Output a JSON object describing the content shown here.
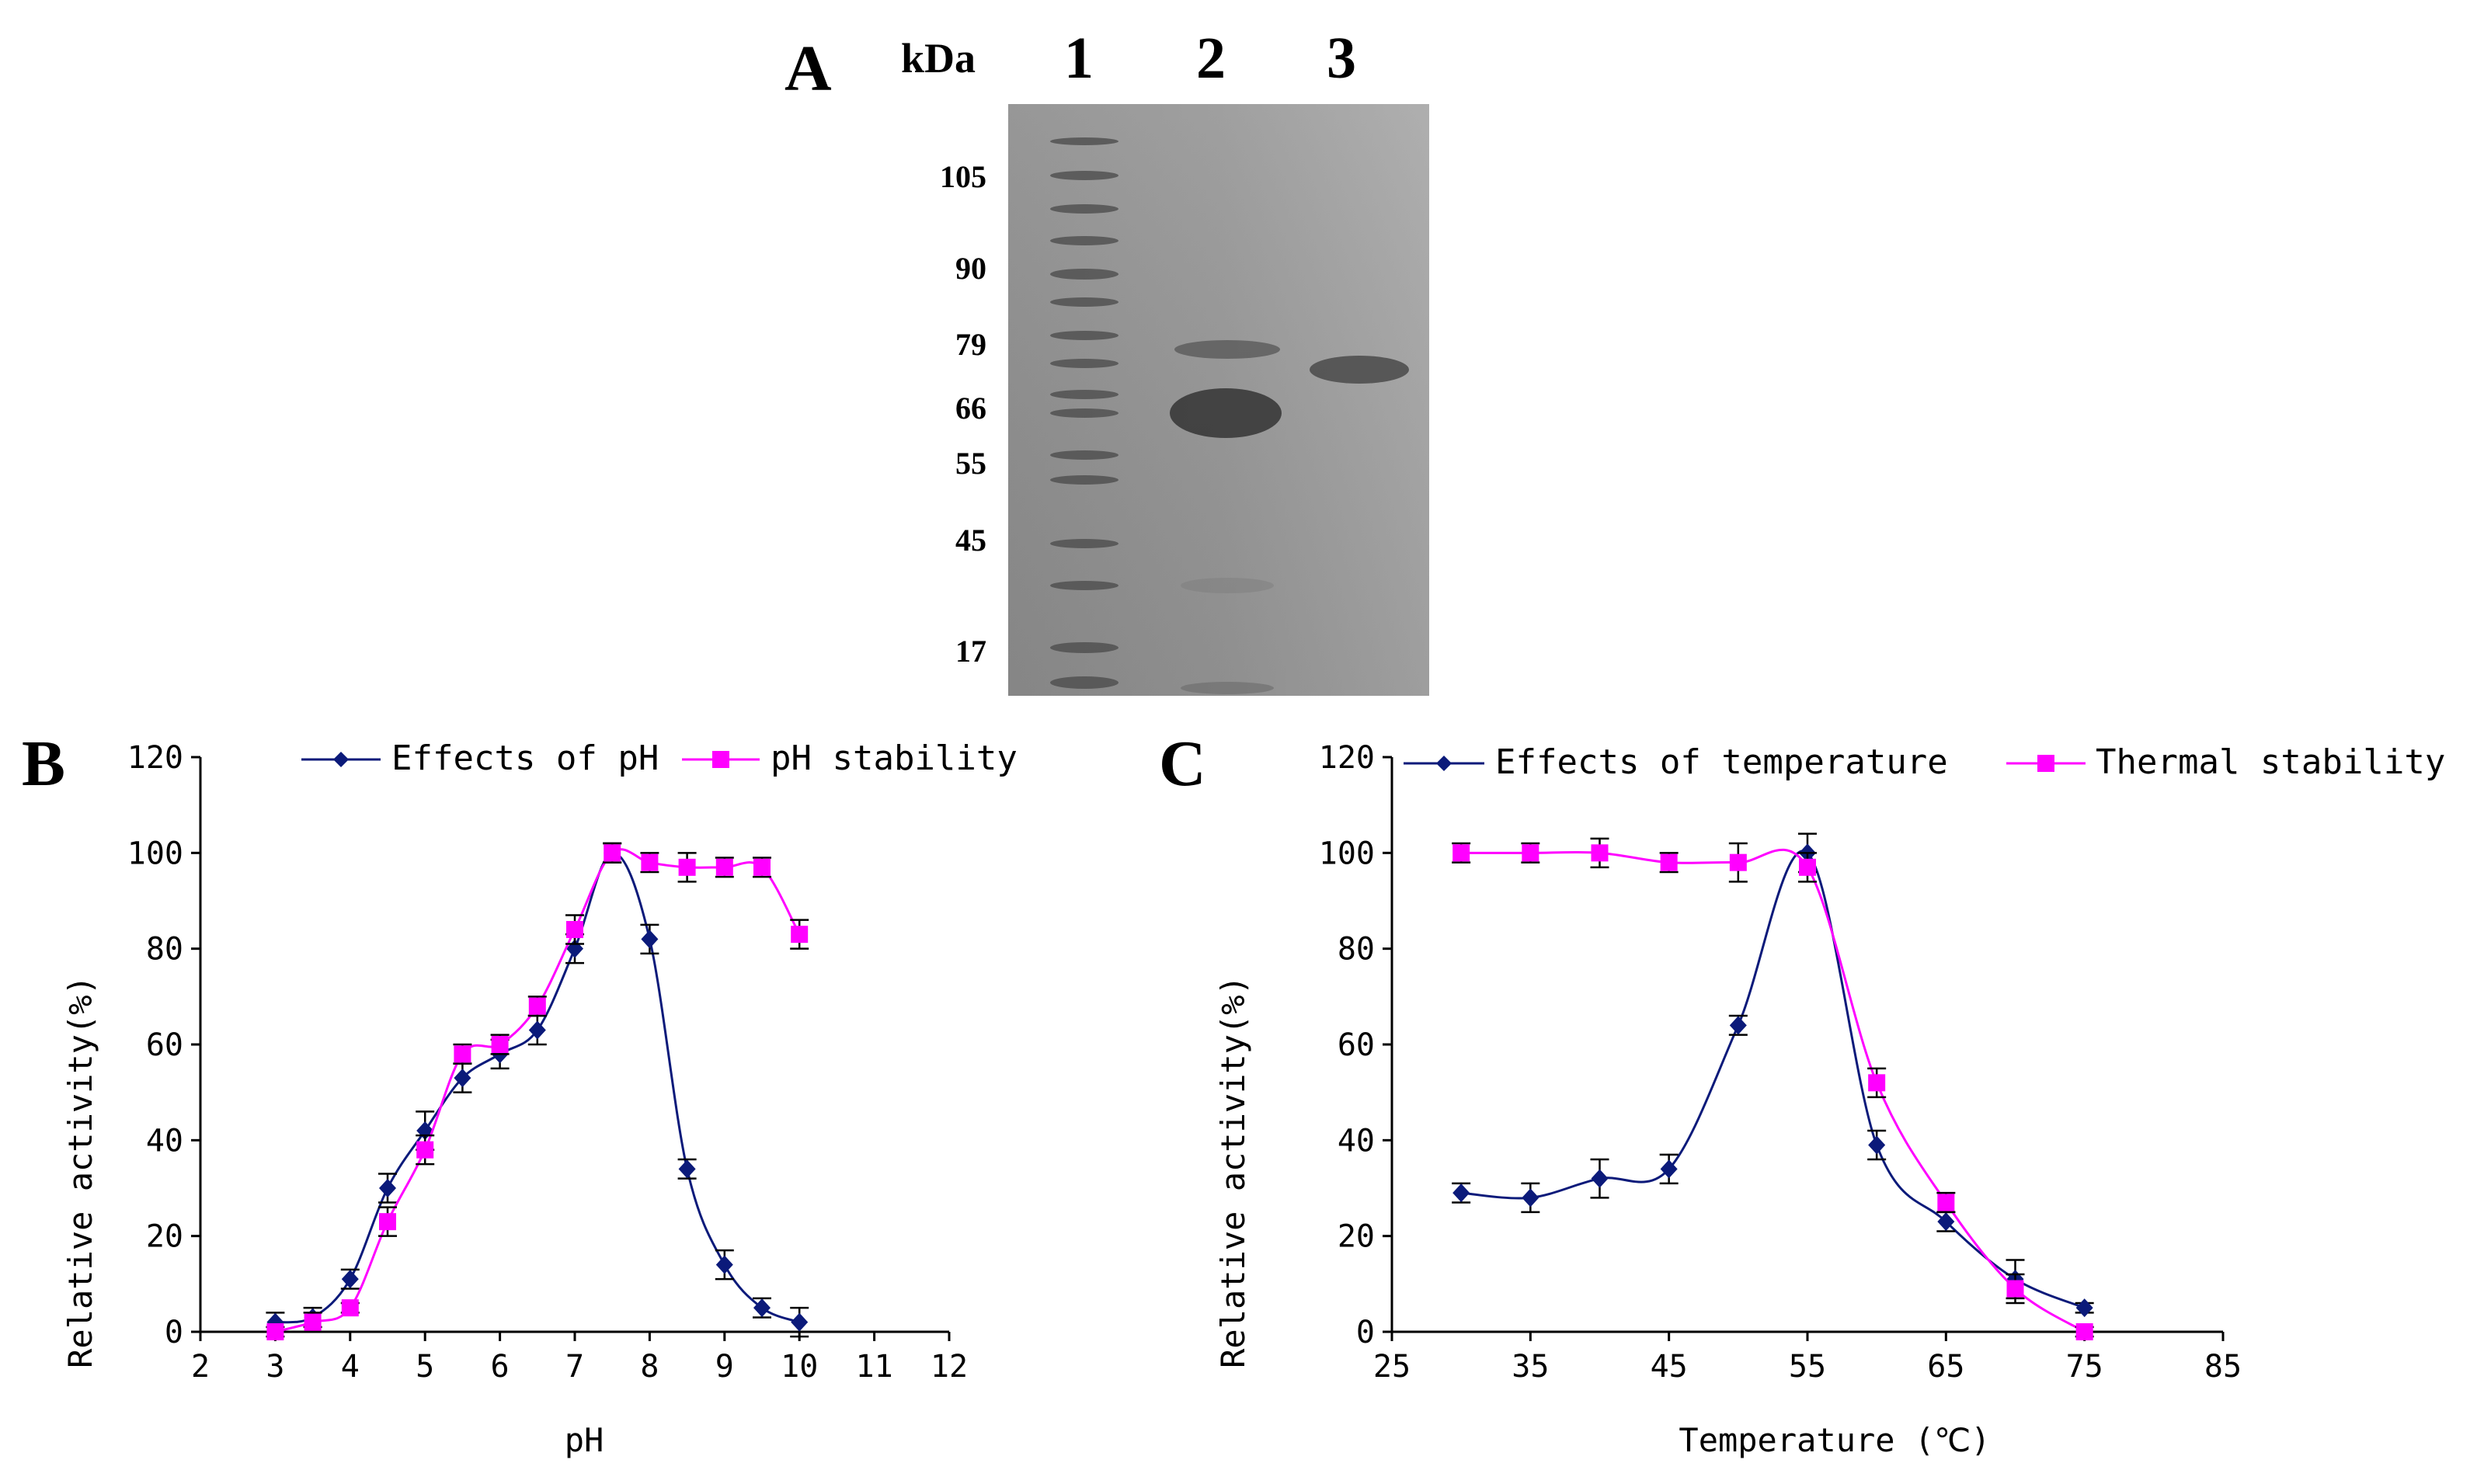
{
  "panel_labels": {
    "a": "A",
    "b": "B",
    "c": "C"
  },
  "gel": {
    "unit_label": "kDa",
    "lanes": [
      "1",
      "2",
      "3"
    ],
    "markers": [
      "105",
      "90",
      "79",
      "66",
      "55",
      "45",
      "17"
    ]
  },
  "colors": {
    "series1": "#0b1a7a",
    "series2": "#ff00ff",
    "axis": "#000000"
  },
  "chart_data": [
    {
      "type": "line",
      "title": "",
      "xlabel": "pH",
      "ylabel": "Relative activity(%)",
      "xlim": [
        2,
        12
      ],
      "ylim": [
        0,
        120
      ],
      "xticks": [
        "2",
        "3",
        "4",
        "5",
        "6",
        "7",
        "8",
        "9",
        "10",
        "11",
        "12"
      ],
      "yticks": [
        "0",
        "20",
        "40",
        "60",
        "80",
        "100",
        "120"
      ],
      "legend_position": "top",
      "series": [
        {
          "name": "Effects of pH",
          "marker": "diamond",
          "x": [
            3,
            3.5,
            4,
            4.5,
            5,
            5.5,
            6,
            6.5,
            7,
            7.5,
            8,
            8.5,
            9,
            9.5,
            10
          ],
          "values": [
            2,
            3,
            11,
            30,
            42,
            53,
            58,
            63,
            80,
            100,
            82,
            34,
            14,
            5,
            2
          ],
          "errors": [
            2,
            2,
            2,
            3,
            4,
            3,
            3,
            3,
            3,
            2,
            3,
            2,
            3,
            2,
            3
          ]
        },
        {
          "name": "pH stability",
          "marker": "square",
          "x": [
            3,
            3.5,
            4,
            4.5,
            5,
            5.5,
            6,
            6.5,
            7,
            7.5,
            8,
            8.5,
            9,
            9.5,
            10
          ],
          "values": [
            0,
            2,
            5,
            23,
            38,
            58,
            60,
            68,
            84,
            100,
            98,
            97,
            97,
            97,
            83
          ],
          "errors": [
            1,
            2,
            1,
            3,
            3,
            2,
            2,
            2,
            3,
            2,
            2,
            3,
            2,
            2,
            3
          ]
        }
      ]
    },
    {
      "type": "line",
      "title": "",
      "xlabel": "Temperature (℃)",
      "ylabel": "Relative activity(%)",
      "xlim": [
        25,
        85
      ],
      "ylim": [
        0,
        120
      ],
      "xticks": [
        "25",
        "35",
        "45",
        "55",
        "65",
        "75",
        "85"
      ],
      "yticks": [
        "0",
        "20",
        "40",
        "60",
        "80",
        "100",
        "120"
      ],
      "legend_position": "top",
      "series": [
        {
          "name": "Effects of temperature",
          "marker": "diamond",
          "x": [
            30,
            35,
            40,
            45,
            50,
            55,
            60,
            65,
            70,
            75
          ],
          "values": [
            29,
            28,
            32,
            34,
            64,
            100,
            39,
            23,
            11,
            5
          ],
          "errors": [
            2,
            3,
            4,
            3,
            2,
            4,
            3,
            2,
            4,
            1
          ]
        },
        {
          "name": "Thermal stability",
          "marker": "square",
          "x": [
            30,
            35,
            40,
            45,
            50,
            55,
            60,
            65,
            70,
            75
          ],
          "values": [
            100,
            100,
            100,
            98,
            98,
            97,
            52,
            27,
            9,
            0
          ],
          "errors": [
            2,
            2,
            3,
            2,
            4,
            3,
            3,
            2,
            3,
            1
          ]
        }
      ]
    }
  ]
}
